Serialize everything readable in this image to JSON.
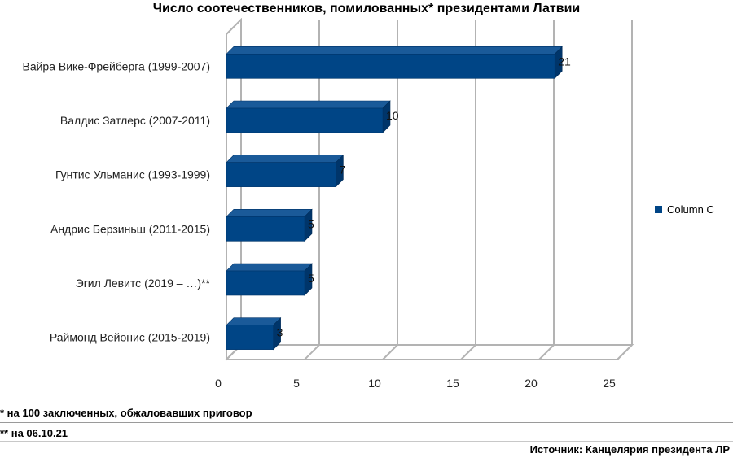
{
  "title": "Число соотечественников, помилованных* президентами Латвии",
  "legend": {
    "label": "Column C",
    "color": "#004586"
  },
  "notes": {
    "note1": "* на 100 заключенных, обжаловавших приговор",
    "note2": "** на 06.10.21"
  },
  "source": "Источник: Канцелярия президента ЛР",
  "chart_data": {
    "type": "bar",
    "orientation": "horizontal",
    "title": "Число соотечественников, помилованных* президентами Латвии",
    "categories": [
      "Вайра Вике-Фрейберга (1999-2007)",
      "Валдис Затлерс (2007-2011)",
      "Гунтис Ульманис (1993-1999)",
      "Андрис Берзиньш (2011-2015)",
      "Эгил Левитс (2019 – …)**",
      "Раймонд Вейонис (2015-2019)"
    ],
    "series": [
      {
        "name": "Column C",
        "values": [
          21,
          10,
          7,
          5,
          5,
          3
        ]
      }
    ],
    "xlim": [
      0,
      25
    ],
    "ticks": [
      0,
      5,
      10,
      15,
      20,
      25
    ],
    "grid": true,
    "legend_position": "right",
    "bar_color": "#004586"
  }
}
